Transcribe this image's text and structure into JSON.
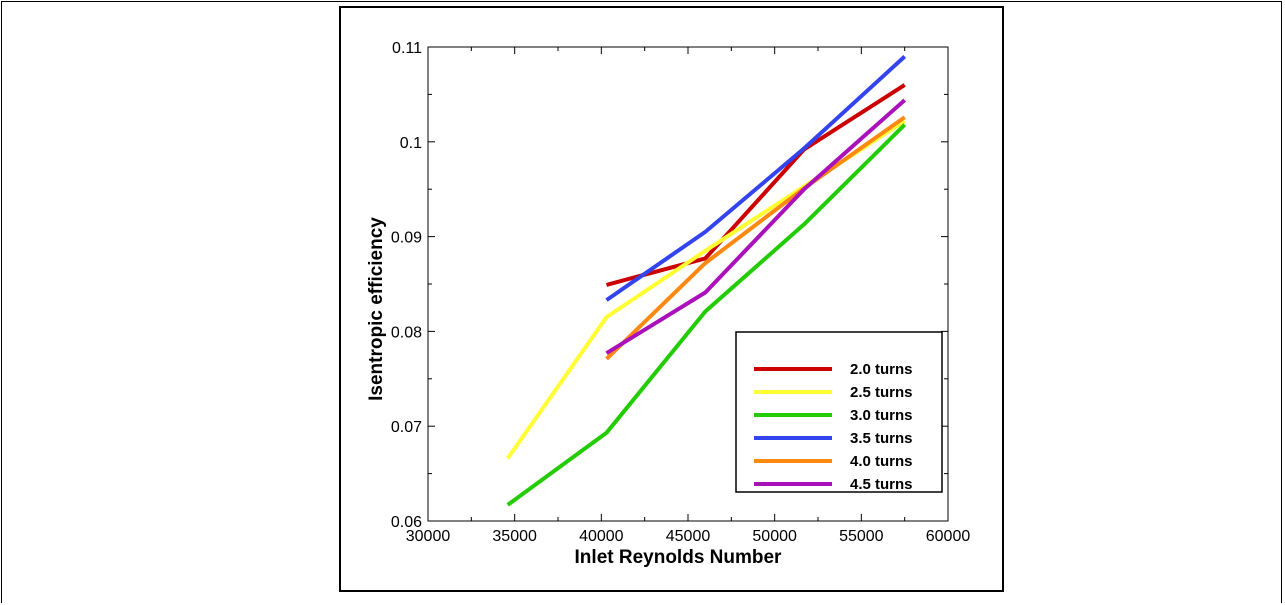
{
  "chart_data": {
    "type": "line",
    "xlabel": "Inlet Reynolds Number",
    "ylabel": "Isentropic efficiency",
    "xlim": [
      30000,
      60000
    ],
    "ylim": [
      0.06,
      0.11
    ],
    "xticks": [
      30000,
      35000,
      40000,
      45000,
      50000,
      55000,
      60000
    ],
    "xtick_labels": [
      "30000",
      "35000",
      "40000",
      "45000",
      "50000",
      "55000",
      "60000"
    ],
    "yticks": [
      0.06,
      0.07,
      0.08,
      0.09,
      0.1,
      0.11
    ],
    "ytick_labels": [
      "0.06",
      "0.07",
      "0.08",
      "0.09",
      "0.1",
      "0.11"
    ],
    "grid": false,
    "legend_position": "bottom-right",
    "series": [
      {
        "name": "2.0 turns",
        "color": "#cc0000",
        "x": [
          40300,
          46000,
          51700,
          57500
        ],
        "y": [
          0.0849,
          0.0877,
          0.0992,
          0.106
        ]
      },
      {
        "name": "2.5 turns",
        "color": "#ffff33",
        "x": [
          34600,
          40300,
          46000,
          51700,
          57500
        ],
        "y": [
          0.0666,
          0.0815,
          0.0885,
          0.0953,
          0.1022
        ]
      },
      {
        "name": "3.0 turns",
        "color": "#22cc00",
        "x": [
          34600,
          40300,
          46000,
          51700,
          57500
        ],
        "y": [
          0.0617,
          0.0693,
          0.0821,
          0.0913,
          0.1018
        ]
      },
      {
        "name": "3.5 turns",
        "color": "#3344ee",
        "x": [
          40300,
          46000,
          51700,
          57500
        ],
        "y": [
          0.0833,
          0.0905,
          0.0993,
          0.109
        ]
      },
      {
        "name": "4.0 turns",
        "color": "#ff8811",
        "x": [
          40300,
          46000,
          51700,
          57500
        ],
        "y": [
          0.0771,
          0.0872,
          0.0951,
          0.1026
        ]
      },
      {
        "name": "4.5 turns",
        "color": "#aa11bb",
        "x": [
          40300,
          46000,
          51700,
          57500
        ],
        "y": [
          0.0777,
          0.0841,
          0.095,
          0.1044
        ]
      }
    ]
  }
}
